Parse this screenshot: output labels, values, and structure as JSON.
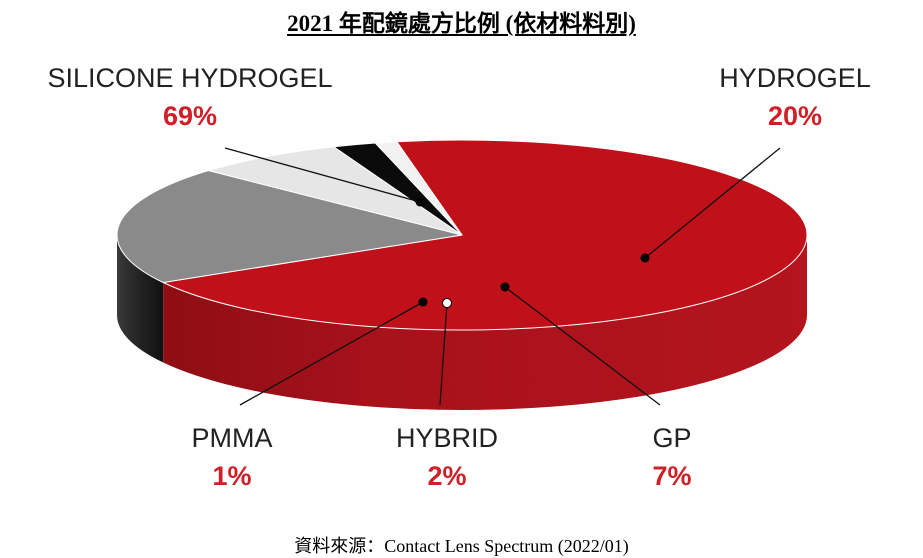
{
  "title": "2021 年配鏡處方比例 (依材料料別)",
  "source": "資料來源：Contact Lens Spectrum (2022/01)",
  "chart_data": {
    "type": "pie",
    "title": "2021 年配鏡處方比例 (依材料料別)",
    "categories": [
      "SILICONE HYDROGEL",
      "HYDROGEL",
      "GP",
      "HYBRID",
      "PMMA"
    ],
    "values": [
      69,
      20,
      7,
      2,
      1
    ],
    "labels": [
      "69%",
      "20%",
      "7%",
      "2%",
      "1%"
    ],
    "colors": {
      "silicone_hydrogel": "#c0111a",
      "hydrogel": "#8a8a8a",
      "gp": "#e6e6e6",
      "hybrid": "#0b0b0b",
      "pmma": "#f2f2f2",
      "pct_text": "#d01f27"
    }
  }
}
